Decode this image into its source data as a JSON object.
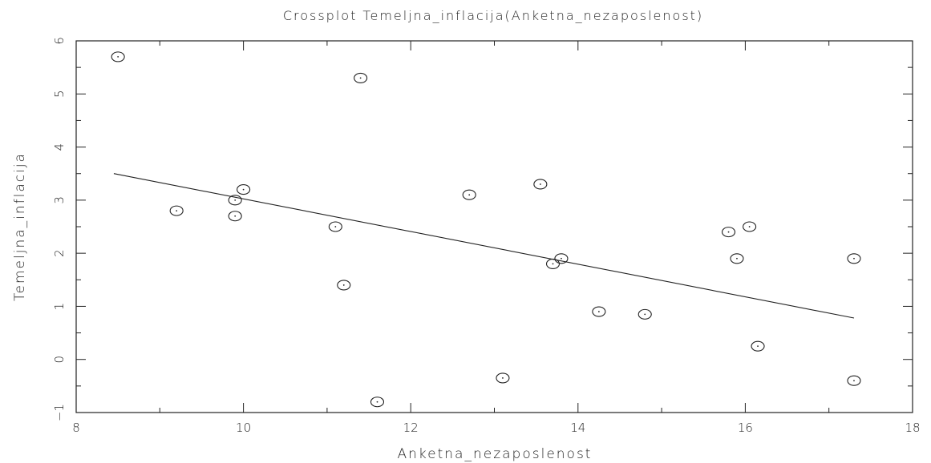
{
  "chart_data": {
    "type": "scatter",
    "title": "Crossplot Temeljna_inflacija(Anketna_nezaposlenost)",
    "xlabel": "Anketna_nezaposlenost",
    "ylabel": "Temeljna_inflacija",
    "xlim": [
      8,
      18
    ],
    "ylim": [
      -1,
      6
    ],
    "x_ticks": [
      "8",
      "10",
      "12",
      "14",
      "16",
      "18"
    ],
    "y_ticks": [
      "−1",
      "0",
      "1",
      "2",
      "3",
      "4",
      "5",
      "6"
    ],
    "grid": false,
    "legend": "none",
    "points": [
      {
        "x": 8.5,
        "y": 5.7
      },
      {
        "x": 11.4,
        "y": 5.3
      },
      {
        "x": 9.2,
        "y": 2.8
      },
      {
        "x": 9.9,
        "y": 3.0
      },
      {
        "x": 9.9,
        "y": 2.7
      },
      {
        "x": 10.0,
        "y": 3.2
      },
      {
        "x": 11.1,
        "y": 2.5
      },
      {
        "x": 11.2,
        "y": 1.4
      },
      {
        "x": 11.6,
        "y": -0.8
      },
      {
        "x": 12.7,
        "y": 3.1
      },
      {
        "x": 13.1,
        "y": -0.35
      },
      {
        "x": 13.55,
        "y": 3.3
      },
      {
        "x": 13.7,
        "y": 1.8
      },
      {
        "x": 13.8,
        "y": 1.9
      },
      {
        "x": 14.25,
        "y": 0.9
      },
      {
        "x": 14.8,
        "y": 0.85
      },
      {
        "x": 15.8,
        "y": 2.4
      },
      {
        "x": 15.9,
        "y": 1.9
      },
      {
        "x": 16.05,
        "y": 2.5
      },
      {
        "x": 16.15,
        "y": 0.25
      },
      {
        "x": 17.3,
        "y": 1.9
      },
      {
        "x": 17.3,
        "y": -0.4
      }
    ],
    "fit_line": {
      "x": [
        8.45,
        17.3
      ],
      "y": [
        3.5,
        0.78
      ]
    },
    "colors": {
      "ink": "#222222",
      "background": "#ffffff"
    }
  }
}
